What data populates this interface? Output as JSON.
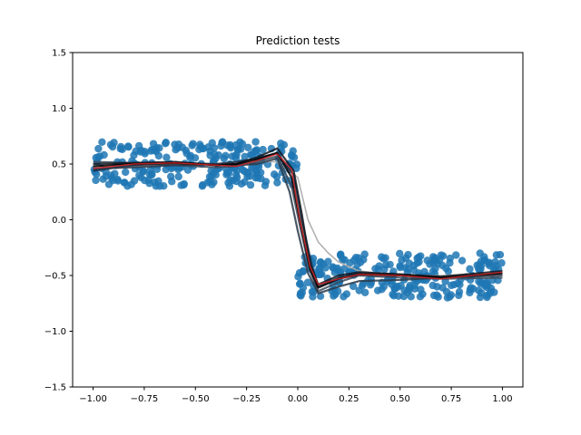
{
  "chart_data": {
    "type": "scatter",
    "title": "Prediction tests",
    "xlabel": "",
    "ylabel": "",
    "xlim": [
      -1.1,
      1.1
    ],
    "ylim": [
      -1.5,
      1.5
    ],
    "xticks": [
      -1.0,
      -0.75,
      -0.5,
      -0.25,
      0.0,
      0.25,
      0.5,
      0.75,
      1.0
    ],
    "xtick_labels": [
      "−1.00",
      "−0.75",
      "−0.50",
      "−0.25",
      "0.00",
      "0.25",
      "0.50",
      "0.75",
      "1.00"
    ],
    "yticks": [
      -1.5,
      -1.0,
      -0.5,
      0.0,
      0.5,
      1.0,
      1.5
    ],
    "ytick_labels": [
      "−1.5",
      "−1.0",
      "−0.5",
      "0.0",
      "0.5",
      "1.0",
      "1.5"
    ],
    "grid": false,
    "legend": "none",
    "scatter": {
      "color": "#1f77b4",
      "clusters": [
        {
          "x_range": [
            -1.0,
            0.0
          ],
          "y_range": [
            0.3,
            0.7
          ],
          "count": 250
        },
        {
          "x_range": [
            0.0,
            1.0
          ],
          "y_range": [
            -0.7,
            -0.3
          ],
          "count": 250
        }
      ]
    },
    "series": [
      {
        "color": "#aaaaaa",
        "x": [
          -1.0,
          -0.8,
          -0.6,
          -0.4,
          -0.2,
          -0.1,
          0.0,
          0.05,
          0.1,
          0.15,
          0.2,
          0.3,
          0.5,
          0.7,
          1.0
        ],
        "y": [
          0.47,
          0.48,
          0.5,
          0.5,
          0.52,
          0.52,
          0.38,
          0.0,
          -0.2,
          -0.3,
          -0.38,
          -0.46,
          -0.5,
          -0.5,
          -0.48
        ]
      },
      {
        "color": "#1a2a40",
        "x": [
          -1.0,
          -0.8,
          -0.6,
          -0.4,
          -0.3,
          -0.2,
          -0.1,
          -0.02,
          0.02,
          0.07,
          0.1,
          0.2,
          0.3,
          0.5,
          0.7,
          1.0
        ],
        "y": [
          0.44,
          0.49,
          0.51,
          0.5,
          0.52,
          0.55,
          0.6,
          0.4,
          0.0,
          -0.42,
          -0.6,
          -0.52,
          -0.48,
          -0.49,
          -0.52,
          -0.48
        ]
      },
      {
        "color": "#3a4a5a",
        "x": [
          -1.0,
          -0.8,
          -0.6,
          -0.4,
          -0.3,
          -0.2,
          -0.1,
          -0.03,
          0.01,
          0.06,
          0.1,
          0.2,
          0.3,
          0.5,
          0.7,
          1.0
        ],
        "y": [
          0.52,
          0.51,
          0.49,
          0.47,
          0.48,
          0.52,
          0.57,
          0.3,
          -0.05,
          -0.46,
          -0.64,
          -0.56,
          -0.5,
          -0.52,
          -0.53,
          -0.52
        ]
      },
      {
        "color": "#101820",
        "x": [
          -1.0,
          -0.8,
          -0.6,
          -0.4,
          -0.3,
          -0.2,
          -0.1,
          -0.02,
          0.02,
          0.06,
          0.1,
          0.2,
          0.3,
          0.5,
          0.7,
          1.0
        ],
        "y": [
          0.5,
          0.51,
          0.52,
          0.49,
          0.5,
          0.56,
          0.64,
          0.44,
          0.05,
          -0.4,
          -0.58,
          -0.5,
          -0.47,
          -0.49,
          -0.51,
          -0.46
        ]
      },
      {
        "color": "#2a3a4a",
        "x": [
          -1.0,
          -0.8,
          -0.6,
          -0.4,
          -0.3,
          -0.2,
          -0.1,
          -0.04,
          0.0,
          0.05,
          0.1,
          0.2,
          0.3,
          0.5,
          0.7,
          1.0
        ],
        "y": [
          0.46,
          0.47,
          0.49,
          0.5,
          0.49,
          0.5,
          0.55,
          0.25,
          -0.1,
          -0.48,
          -0.66,
          -0.6,
          -0.55,
          -0.54,
          -0.52,
          -0.5
        ]
      },
      {
        "color": "#000000",
        "x": [
          -1.0,
          -0.8,
          -0.6,
          -0.4,
          -0.3,
          -0.2,
          -0.1,
          -0.03,
          0.01,
          0.06,
          0.1,
          0.2,
          0.3,
          0.5,
          0.7,
          1.0
        ],
        "y": [
          0.48,
          0.5,
          0.51,
          0.49,
          0.5,
          0.54,
          0.6,
          0.38,
          0.0,
          -0.44,
          -0.61,
          -0.53,
          -0.49,
          -0.5,
          -0.52,
          -0.48
        ]
      },
      {
        "color": "#d62728",
        "x": [
          -1.0,
          -0.8,
          -0.6,
          -0.4,
          -0.3,
          -0.2,
          -0.1,
          -0.03,
          0.01,
          0.06,
          0.1,
          0.2,
          0.3,
          0.5,
          0.7,
          1.0
        ],
        "y": [
          0.46,
          0.5,
          0.51,
          0.49,
          0.48,
          0.53,
          0.59,
          0.45,
          0.0,
          -0.42,
          -0.58,
          -0.53,
          -0.49,
          -0.5,
          -0.53,
          -0.47
        ]
      }
    ]
  }
}
